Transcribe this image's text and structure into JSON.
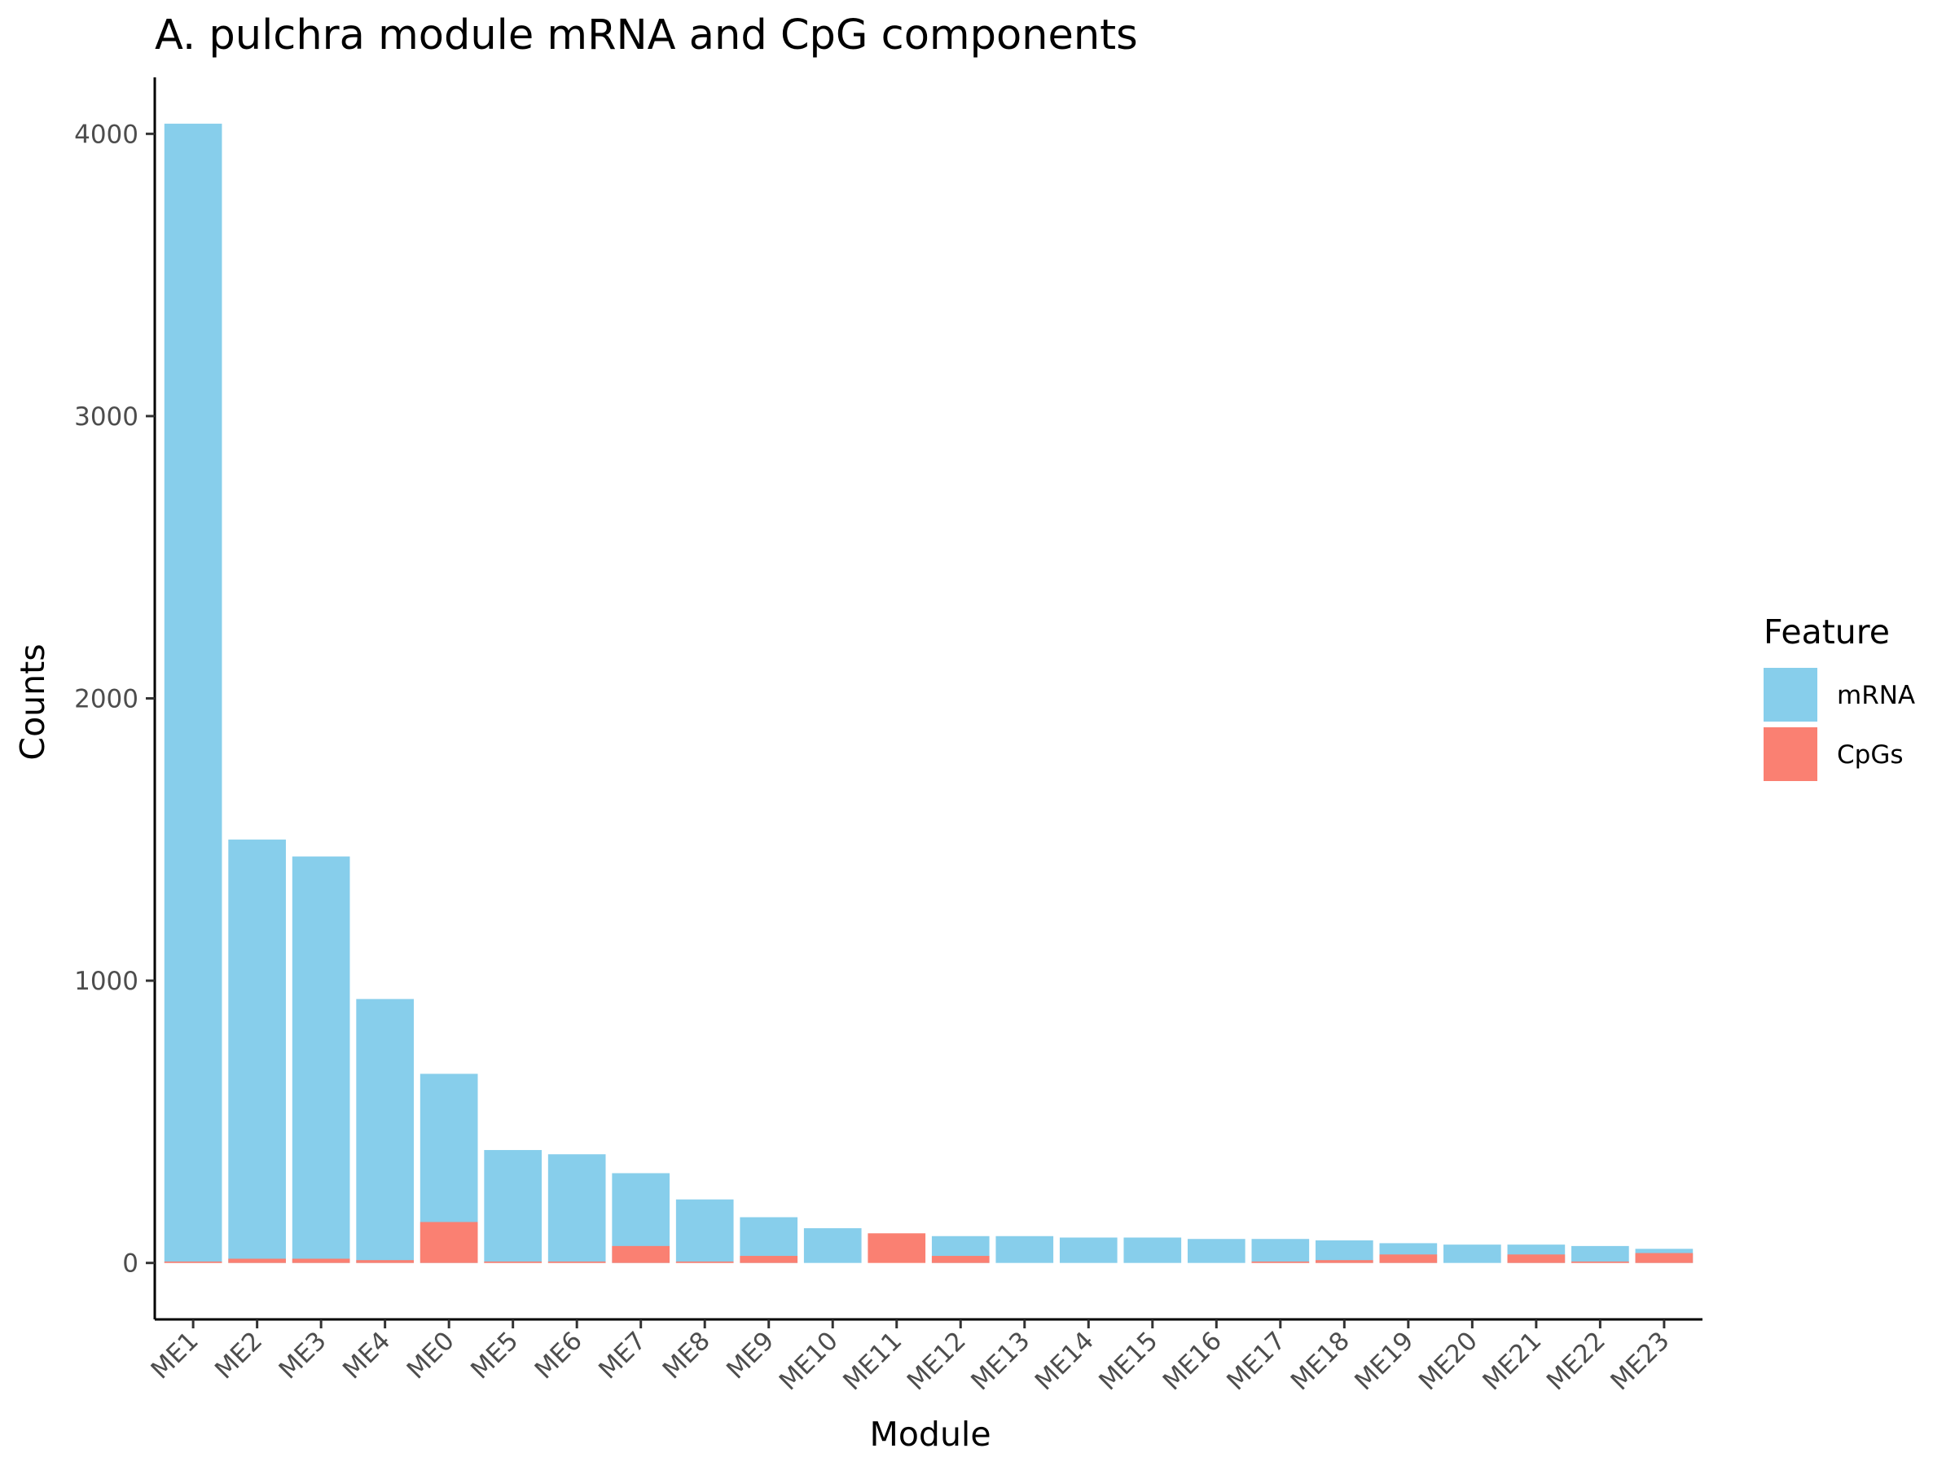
{
  "chart_data": {
    "type": "bar",
    "stacked": false,
    "title": "A. pulchra module mRNA and CpG components",
    "xlabel": "Module",
    "ylabel": "Counts",
    "categories": [
      "ME1",
      "ME2",
      "ME3",
      "ME4",
      "ME0",
      "ME5",
      "ME6",
      "ME7",
      "ME8",
      "ME9",
      "ME10",
      "ME11",
      "ME12",
      "ME13",
      "ME14",
      "ME15",
      "ME16",
      "ME17",
      "ME18",
      "ME19",
      "ME20",
      "ME21",
      "ME22",
      "ME23"
    ],
    "series": [
      {
        "name": "mRNA",
        "color": "#87CEEB",
        "values": [
          4036,
          1500,
          1440,
          935,
          670,
          400,
          385,
          318,
          225,
          162,
          123,
          0,
          95,
          95,
          90,
          90,
          85,
          85,
          80,
          70,
          65,
          65,
          60,
          50
        ]
      },
      {
        "name": "CpGs",
        "color": "#FA8072",
        "values": [
          5,
          15,
          15,
          10,
          145,
          5,
          5,
          60,
          5,
          25,
          0,
          105,
          25,
          0,
          0,
          0,
          0,
          5,
          10,
          30,
          0,
          30,
          5,
          35
        ]
      }
    ],
    "ylim": [
      -200,
      4200
    ],
    "yticks": [
      0,
      1000,
      2000,
      3000,
      4000
    ],
    "grid": false,
    "legend": {
      "title": "Feature",
      "position": "right"
    }
  }
}
